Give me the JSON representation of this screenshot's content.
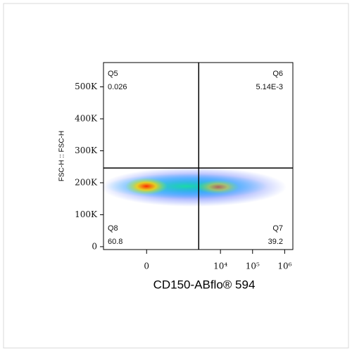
{
  "chart_data": {
    "type": "flow-density",
    "x_label": "CD150-ABflo® 594",
    "y_label": "FSC-H :: FSC-H",
    "xscale": {
      "type": "arcsinh",
      "cofactor": 100
    },
    "xlim": [
      -1100,
      1800000
    ],
    "xticks": [
      0,
      {
        "value": 10000,
        "label": "10⁴"
      },
      {
        "value": 100000,
        "label": "10⁵"
      },
      {
        "value": 1000000,
        "label": "10⁶"
      }
    ],
    "ylim": [
      -9000,
      576000
    ],
    "yticks": [
      0,
      {
        "value": 100000,
        "label": "100K"
      },
      {
        "value": 200000,
        "label": "200K"
      },
      {
        "value": 300000,
        "label": "300K"
      },
      {
        "value": 400000,
        "label": "400K"
      },
      {
        "value": 500000,
        "label": "500K"
      }
    ],
    "gate": {
      "x": 2100,
      "y": 246000
    },
    "quadrants": {
      "names": [
        "Q5",
        "Q6",
        "Q8",
        "Q7"
      ],
      "values": [
        0.026,
        0.00514,
        60.8,
        39.2
      ],
      "value_labels": [
        "0.026",
        "5.14E-3",
        "60.8",
        "39.2"
      ]
    }
  }
}
